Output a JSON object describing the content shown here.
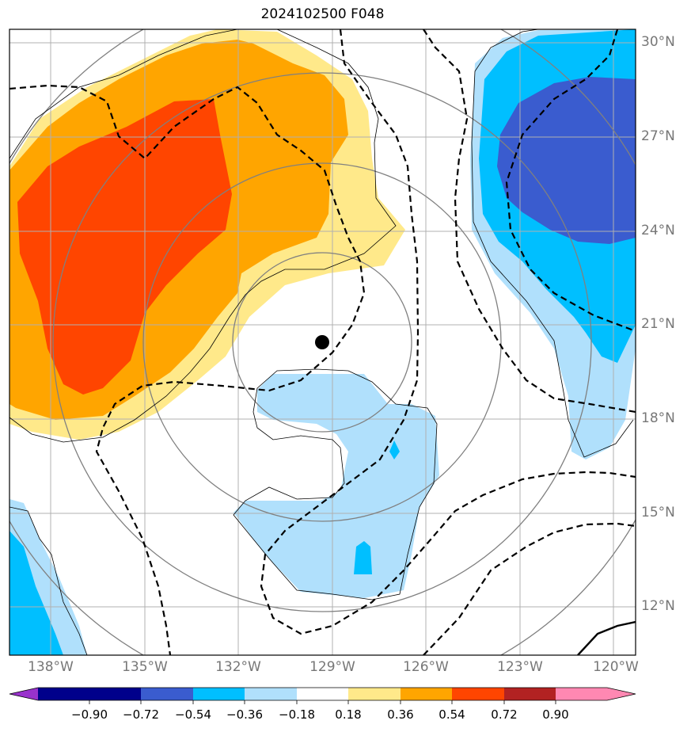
{
  "title": "2024102500 F048",
  "map": {
    "lon_labels": [
      "138°W",
      "135°W",
      "132°W",
      "129°W",
      "126°W",
      "123°W",
      "120°W"
    ],
    "lat_labels": [
      "30°N",
      "27°N",
      "24°N",
      "21°N",
      "18°N",
      "15°N",
      "12°N"
    ],
    "storm_center": {
      "lon": -129.3,
      "lat": 20.4
    },
    "gridlines": true
  },
  "colorbar": {
    "tick_labels": [
      "−0.90",
      "−0.72",
      "−0.54",
      "−0.36",
      "−0.18",
      "0.18",
      "0.36",
      "0.54",
      "0.72",
      "0.90"
    ],
    "bins": [
      {
        "range": "< -0.90",
        "color": "#9932cc"
      },
      {
        "range": "-0.90 to -0.72",
        "color": "#00008b"
      },
      {
        "range": "-0.72 to -0.54",
        "color": "#3a5ccf"
      },
      {
        "range": "-0.54 to -0.36",
        "color": "#00bfff"
      },
      {
        "range": "-0.36 to -0.18",
        "color": "#b0e0fc"
      },
      {
        "range": "-0.18 to 0.18",
        "color": "#ffffff"
      },
      {
        "range": "0.18 to 0.36",
        "color": "#ffe98a"
      },
      {
        "range": "0.36 to 0.54",
        "color": "#ffa500"
      },
      {
        "range": "0.54 to 0.72",
        "color": "#ff4500"
      },
      {
        "range": "0.72 to 0.90",
        "color": "#b22222"
      },
      {
        "range": "> 0.90",
        "color": "#ff88b2"
      }
    ]
  }
}
